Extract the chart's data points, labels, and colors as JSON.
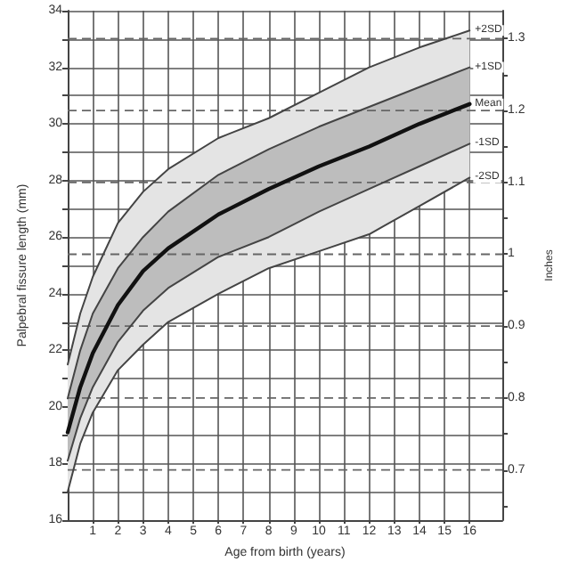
{
  "chart_data": {
    "type": "line",
    "xlabel": "Age from birth (years)",
    "ylabel": "Palpebral fissure length (mm)",
    "y2label": "Inches",
    "x": [
      0,
      0.5,
      1,
      2,
      3,
      4,
      6,
      8,
      10,
      12,
      14,
      16
    ],
    "series": [
      {
        "name": "+2SD",
        "color": "#444444",
        "values": [
          21.5,
          23.3,
          24.6,
          26.5,
          27.6,
          28.4,
          29.5,
          30.2,
          31.1,
          32.0,
          32.7,
          33.3
        ],
        "lower": [
          17.0,
          18.7,
          19.8,
          21.3,
          22.2,
          23.0,
          24.0,
          24.9,
          25.5,
          26.1,
          27.1,
          28.1
        ],
        "upper": [
          21.5,
          23.3,
          24.6,
          26.5,
          27.6,
          28.4,
          29.5,
          30.2,
          31.1,
          32.0,
          32.7,
          33.3
        ]
      },
      {
        "name": "+1SD",
        "color": "#444444",
        "values": [
          20.3,
          22.0,
          23.3,
          24.9,
          26.0,
          26.9,
          28.2,
          29.1,
          29.9,
          30.6,
          31.3,
          32.0
        ]
      },
      {
        "name": "Mean",
        "color": "#111111",
        "values": [
          19.1,
          20.7,
          21.9,
          23.6,
          24.8,
          25.6,
          26.8,
          27.7,
          28.5,
          29.2,
          30.0,
          30.7
        ],
        "lower": [
          18.1,
          19.6,
          20.7,
          22.3,
          23.4,
          24.2,
          25.3,
          26.0,
          26.9,
          27.7,
          28.5,
          29.3
        ],
        "upper": [
          20.3,
          22.0,
          23.3,
          24.9,
          26.0,
          26.9,
          28.2,
          29.1,
          29.9,
          30.6,
          31.3,
          32.0
        ]
      },
      {
        "name": "-1SD",
        "color": "#444444",
        "values": [
          18.1,
          19.6,
          20.7,
          22.3,
          23.4,
          24.2,
          25.3,
          26.0,
          26.9,
          27.7,
          28.5,
          29.3
        ]
      },
      {
        "name": "-2SD",
        "color": "#444444",
        "values": [
          17.0,
          18.7,
          19.8,
          21.3,
          22.2,
          23.0,
          24.0,
          24.9,
          25.5,
          26.1,
          27.1,
          28.1
        ]
      }
    ],
    "xlim": [
      0,
      17.3
    ],
    "xticks": [
      1,
      2,
      3,
      4,
      5,
      6,
      7,
      8,
      9,
      10,
      11,
      12,
      13,
      14,
      15,
      16
    ],
    "ylim": [
      16,
      34
    ],
    "yticks": [
      16,
      {
        "value": 17,
        "label": null
      },
      18,
      {
        "value": 19,
        "label": null
      },
      20,
      {
        "value": 21,
        "label": null
      },
      22,
      {
        "value": 23,
        "label": null
      },
      24,
      {
        "value": 25,
        "label": null
      },
      26,
      {
        "value": 27,
        "label": null
      },
      28,
      {
        "value": 29,
        "label": null
      },
      30,
      {
        "value": 31,
        "label": null
      },
      32,
      {
        "value": 33,
        "label": null
      },
      34
    ],
    "y2lim": [
      0.63,
      1.339
    ],
    "y2ticks": [
      {
        "value": 0.65,
        "label": null
      },
      0.7,
      {
        "value": 0.75,
        "label": null
      },
      0.8,
      {
        "value": 0.85,
        "label": null
      },
      0.9,
      {
        "value": 0.95,
        "label": null
      },
      1.0,
      {
        "value": 1.05,
        "label": null
      },
      1.1,
      {
        "value": 1.15,
        "label": null
      },
      1.2,
      {
        "value": 1.25,
        "label": null
      },
      1.3
    ],
    "grid": true,
    "legend": false,
    "marker": "none",
    "line_style": "solid"
  }
}
